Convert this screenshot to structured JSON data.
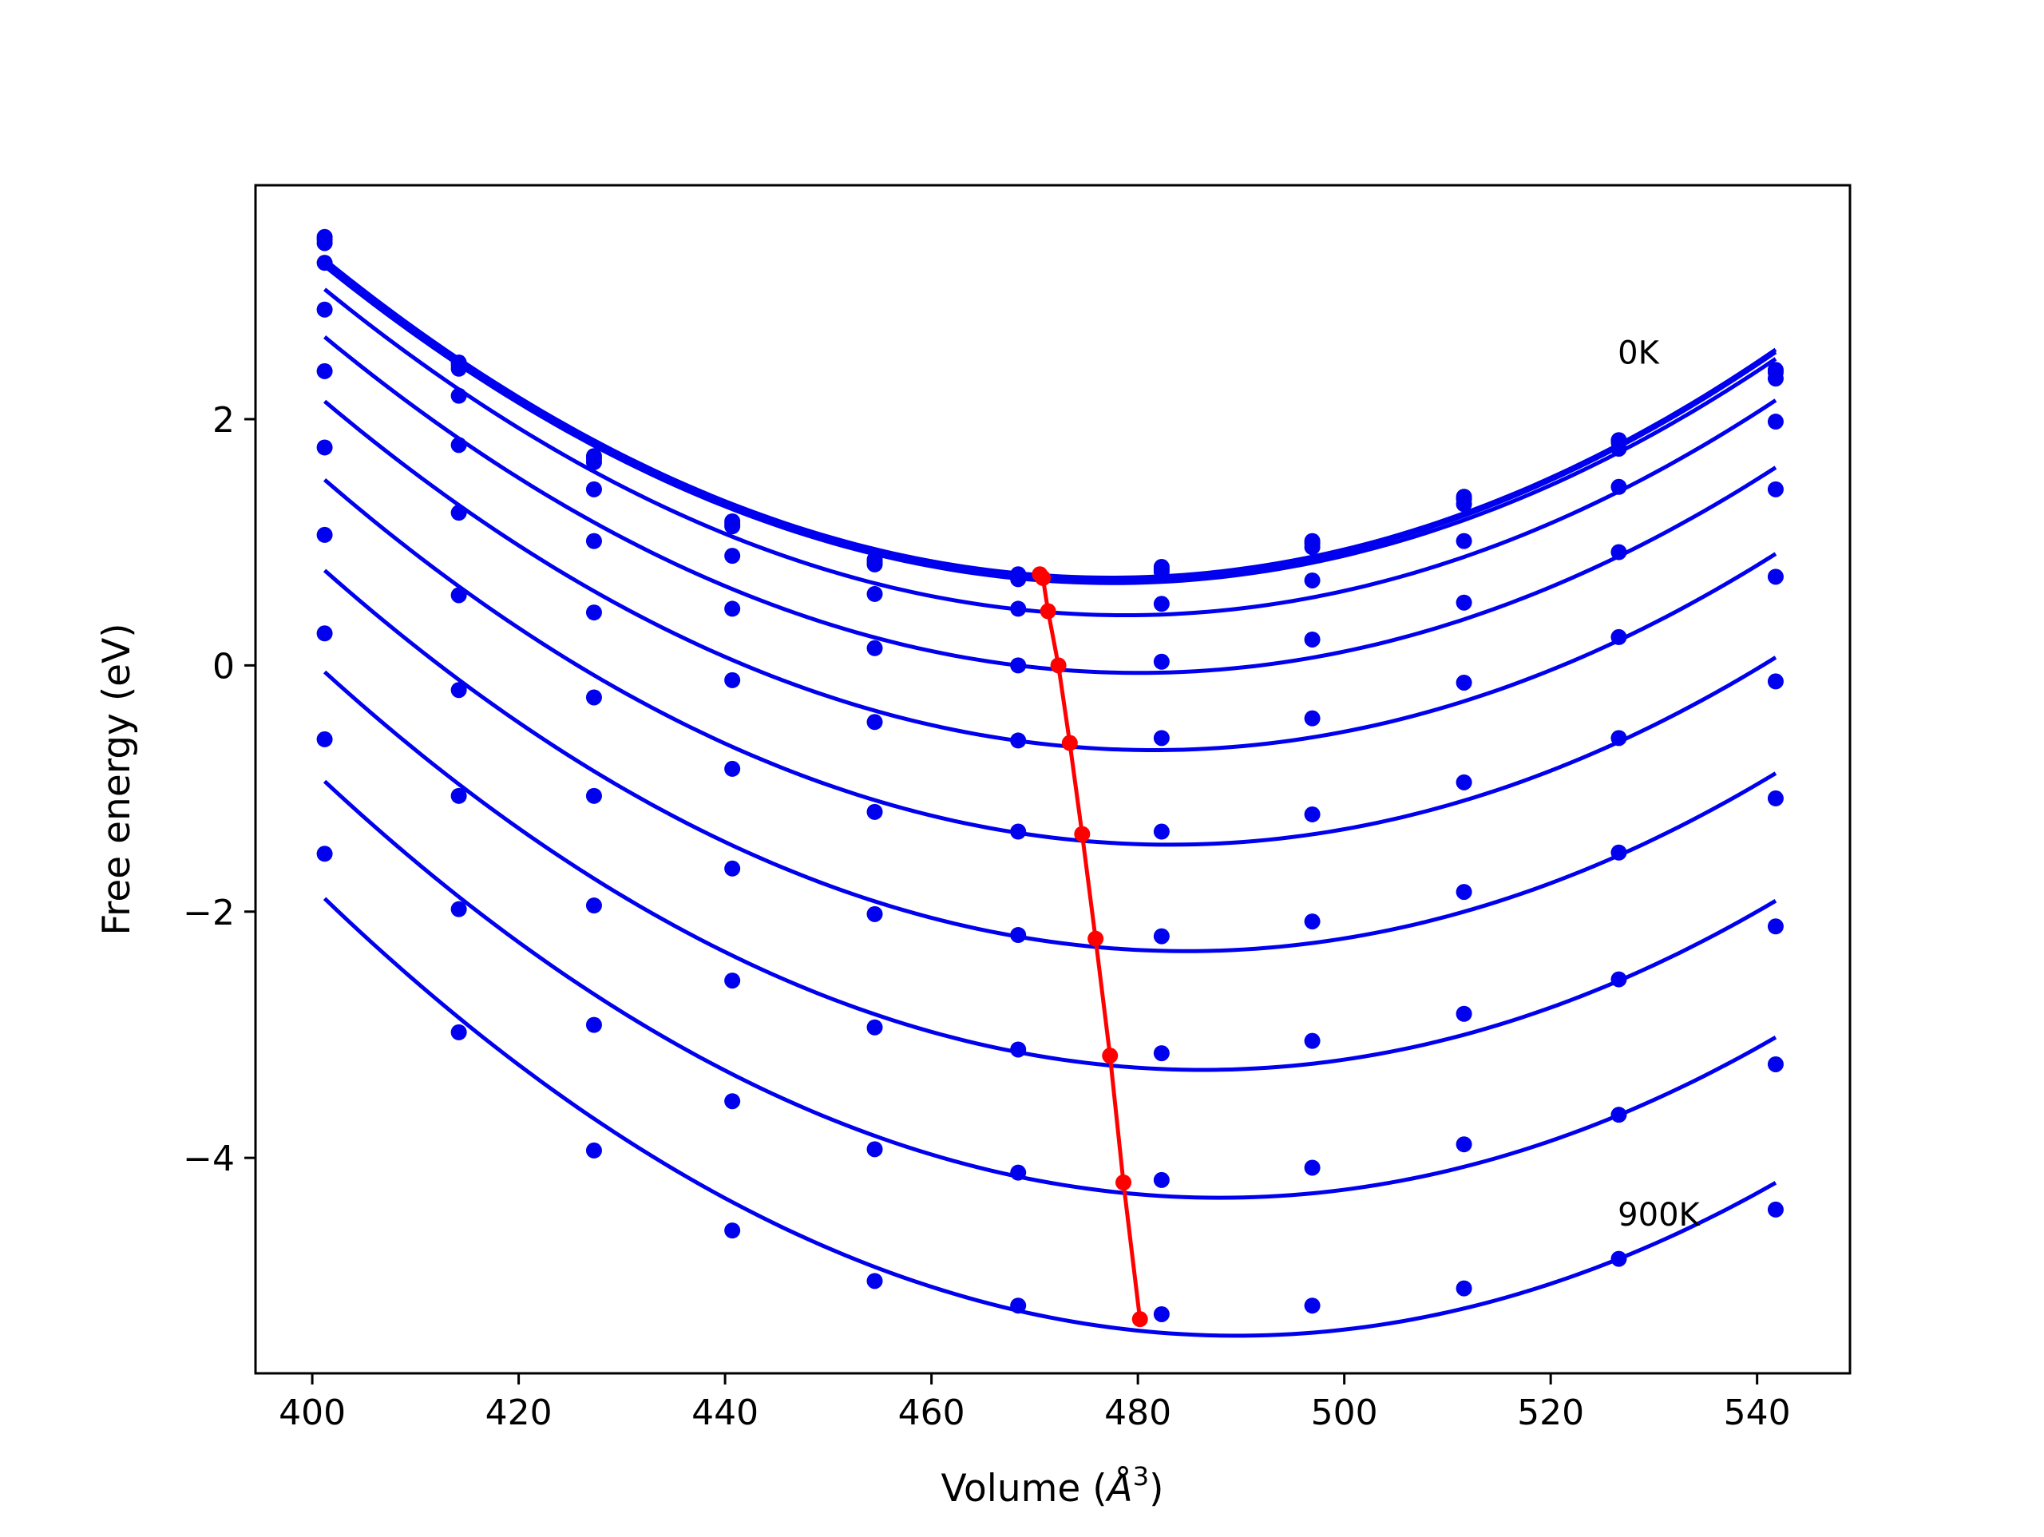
{
  "chart_data": {
    "type": "line",
    "title": "",
    "xlabel": "Volume",
    "xlabel_unit": "Å",
    "xlabel_exponent": "3",
    "ylabel": "Free energy (eV)",
    "xlim": [
      394.5,
      549
    ],
    "ylim": [
      -5.75,
      3.9
    ],
    "x_ticks": [
      400,
      420,
      440,
      460,
      480,
      500,
      520,
      540
    ],
    "y_ticks": [
      2,
      0,
      -2,
      -4
    ],
    "y_tick_labels": [
      "2",
      "0",
      "−2",
      "−4"
    ],
    "grid": false,
    "legend": "none",
    "annotations": [
      {
        "text": "0K",
        "x": 526.5,
        "y": 2.45
      },
      {
        "text": "900K",
        "x": 526.5,
        "y": -4.55
      }
    ],
    "volumes": [
      401.2,
      414.2,
      427.3,
      440.7,
      454.5,
      468.4,
      482.3,
      496.9,
      511.6,
      526.6,
      541.8
    ],
    "series": [
      {
        "values": [
          3.48,
          2.46,
          1.7,
          1.17,
          0.86,
          0.74,
          0.8,
          1.01,
          1.37,
          1.83,
          2.4
        ]
      },
      {
        "values": [
          3.46,
          2.44,
          1.68,
          1.15,
          0.84,
          0.72,
          0.78,
          0.99,
          1.35,
          1.81,
          2.38
        ]
      },
      {
        "values": [
          3.43,
          2.41,
          1.65,
          1.13,
          0.82,
          0.7,
          0.76,
          0.96,
          1.31,
          1.76,
          2.33
        ]
      },
      {
        "values": [
          3.27,
          2.19,
          1.43,
          0.89,
          0.58,
          0.46,
          0.5,
          0.69,
          1.01,
          1.45,
          1.98
        ]
      },
      {
        "values": [
          2.89,
          1.79,
          1.01,
          0.46,
          0.14,
          0.0,
          0.03,
          0.21,
          0.51,
          0.92,
          1.43
        ]
      },
      {
        "values": [
          2.39,
          1.24,
          0.43,
          -0.12,
          -0.46,
          -0.61,
          -0.59,
          -0.43,
          -0.14,
          0.23,
          0.72
        ]
      },
      {
        "values": [
          1.77,
          0.57,
          -0.26,
          -0.84,
          -1.19,
          -1.35,
          -1.35,
          -1.21,
          -0.95,
          -0.59,
          -0.13
        ]
      },
      {
        "values": [
          1.06,
          -0.2,
          -1.06,
          -1.65,
          -2.02,
          -2.19,
          -2.2,
          -2.08,
          -1.84,
          -1.52,
          -1.08
        ]
      },
      {
        "values": [
          0.26,
          -1.06,
          -1.95,
          -2.56,
          -2.94,
          -3.12,
          -3.15,
          -3.05,
          -2.83,
          -2.55,
          -2.12
        ]
      },
      {
        "values": [
          -0.6,
          -1.98,
          -2.92,
          -3.54,
          -3.93,
          -4.12,
          -4.18,
          -4.08,
          -3.89,
          -3.65,
          -3.24
        ]
      },
      {
        "values": [
          -1.53,
          -2.98,
          -3.94,
          -4.59,
          -5.0,
          -5.2,
          -5.27,
          -5.2,
          -5.06,
          -4.82,
          -4.42
        ]
      }
    ],
    "minima": {
      "x": [
        470.5,
        470.8,
        471.3,
        472.3,
        473.4,
        474.6,
        475.9,
        477.3,
        478.6,
        480.2
      ],
      "y": [
        0.74,
        0.71,
        0.44,
        0.0,
        -0.63,
        -1.37,
        -2.22,
        -3.17,
        -4.2,
        -5.31
      ]
    },
    "colors": {
      "curves": "#0000ee",
      "minima": "#ff0000",
      "axes": "#000000",
      "background": "#ffffff"
    }
  }
}
